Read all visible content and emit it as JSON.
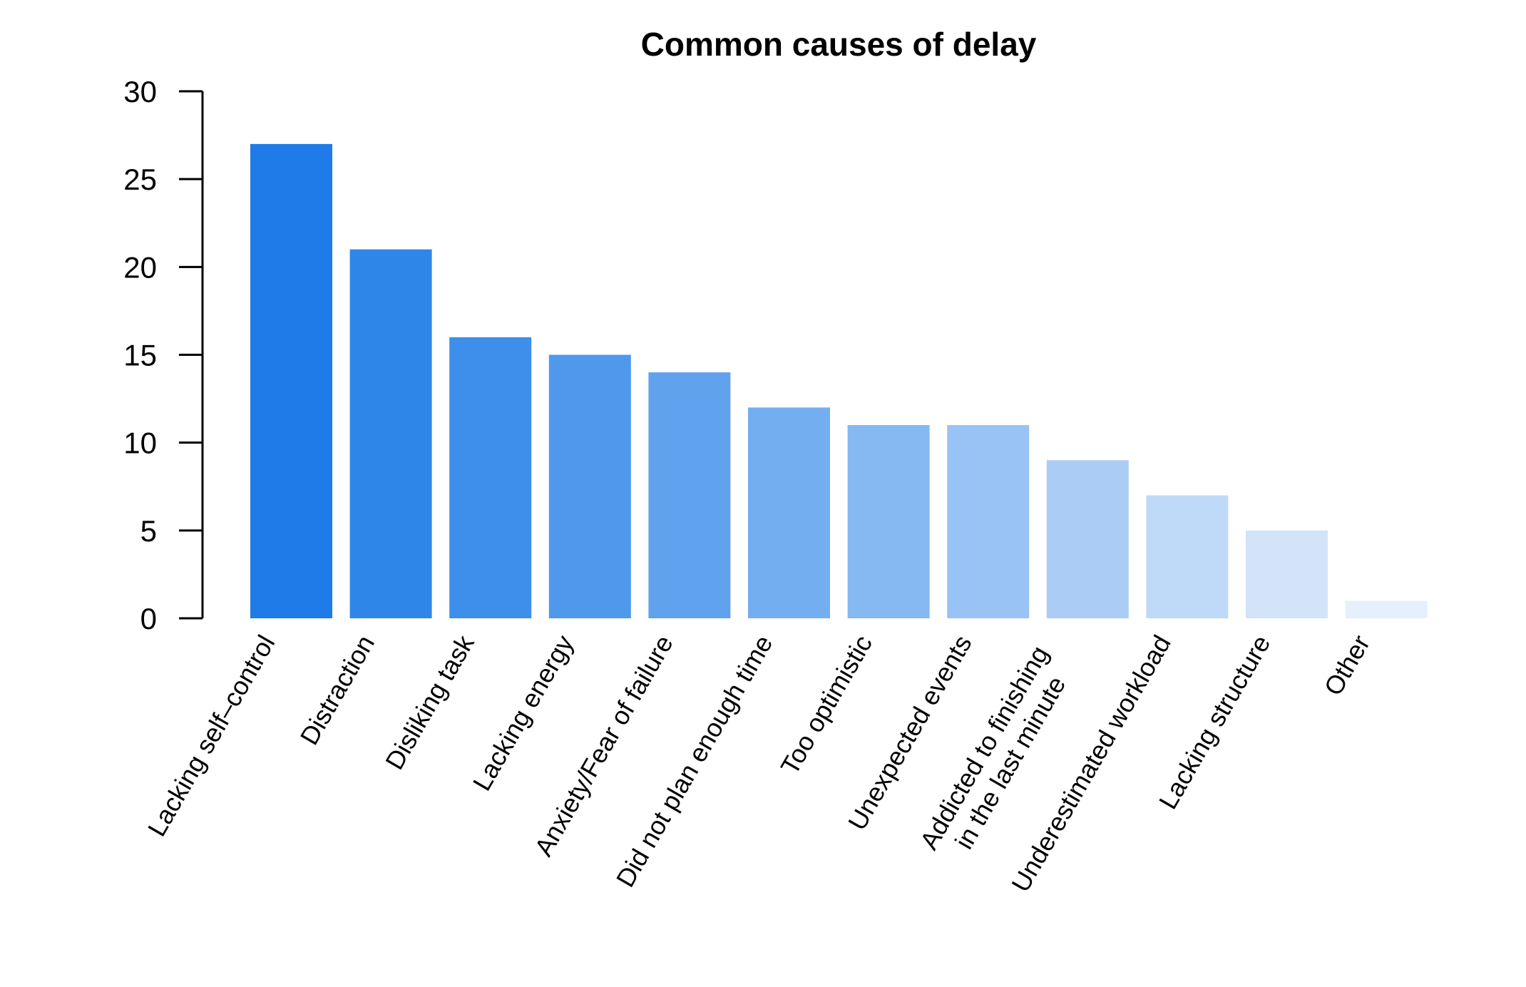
{
  "chart_data": {
    "type": "bar",
    "title": "Common causes of delay",
    "xlabel": "",
    "ylabel": "",
    "ylim": [
      0,
      30
    ],
    "yticks": [
      0,
      5,
      10,
      15,
      20,
      25,
      30
    ],
    "grid": false,
    "categories": [
      "Lacking self–control",
      "Distraction",
      "Disliking task",
      "Lacking energy",
      "Anxiety/Fear of failure",
      "Did not plan enough time",
      "Too optimistic",
      "Unexpected events",
      "Addicted to finishing\nin the last minute",
      "Underestimated workload",
      "Lacking structure",
      "Other"
    ],
    "values": [
      27,
      21,
      16,
      15,
      14,
      12,
      11,
      11,
      9,
      7,
      5,
      1
    ],
    "colors": [
      "#1e7be7",
      "#2e86e9",
      "#3d8feb",
      "#4f98ec",
      "#61a2ee",
      "#73aef0",
      "#86b8f2",
      "#98c3f4",
      "#abcdf5",
      "#bfd9f8",
      "#d3e4f9",
      "#e6effc"
    ]
  }
}
